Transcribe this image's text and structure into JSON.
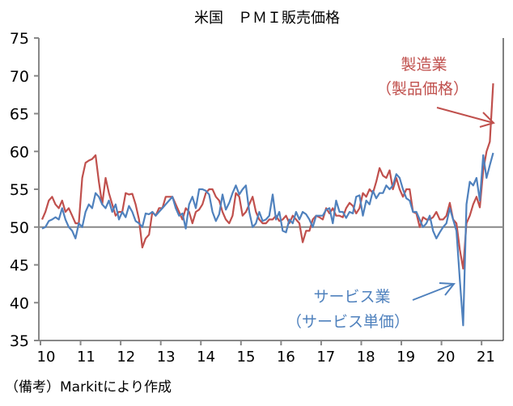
{
  "chart_data": {
    "type": "line",
    "title": "米国　ＰＭＩ販売価格",
    "xlabel": "",
    "ylabel": "",
    "ylim": [
      35,
      75
    ],
    "yticks": [
      "75",
      "70",
      "65",
      "60",
      "55",
      "50",
      "45",
      "40",
      "35"
    ],
    "xticks": [
      "10",
      "11",
      "12",
      "13",
      "14",
      "15",
      "16",
      "17",
      "18",
      "19",
      "20",
      "21"
    ],
    "x_start": "2010-01",
    "x_frequency": "monthly",
    "reference_line": 50,
    "grid": false,
    "series": [
      {
        "name": "製造業（製品価格）",
        "label_line1": "製造業",
        "label_line2": "（製品価格）",
        "color": "#C0504D",
        "values": [
          51,
          52,
          53.5,
          54,
          53,
          52.5,
          53.5,
          52,
          52.5,
          51.5,
          50.5,
          50.5,
          56.5,
          58.5,
          58.8,
          59,
          59.5,
          56,
          53,
          56.5,
          54.5,
          53,
          51.5,
          52,
          52,
          54.5,
          54.3,
          54.4,
          53,
          51,
          47.3,
          48.5,
          49,
          52,
          51.5,
          52.5,
          52.5,
          54,
          54,
          54,
          53,
          52,
          51,
          52.5,
          52,
          50.5,
          52,
          52.3,
          53,
          54.5,
          55,
          55,
          54,
          53.5,
          52,
          51,
          50.5,
          51.5,
          54.5,
          54,
          51.5,
          52,
          53,
          54,
          52,
          51,
          50.5,
          50.5,
          51,
          51,
          51.5,
          50.8,
          51,
          51.5,
          50.5,
          51.5,
          51,
          50.5,
          48,
          49.5,
          49.5,
          51,
          51.5,
          51.3,
          51,
          52.5,
          51.8,
          52.5,
          51.5,
          51.5,
          51.3,
          52.5,
          53.2,
          52.8,
          51.8,
          52.5,
          54.5,
          54,
          55,
          54.5,
          56,
          57.8,
          56.8,
          56.5,
          57.5,
          55,
          56.5,
          55,
          54,
          55,
          55,
          52,
          51.8,
          50,
          51.3,
          51,
          51,
          51.3,
          52,
          51,
          51,
          51.5,
          53.2,
          51,
          50.5,
          47,
          44.5,
          50.5,
          51.5,
          53,
          54,
          52.6,
          57.5,
          60,
          61.3,
          69
        ]
      },
      {
        "name": "サービス業（サービス単価）",
        "label_line1": "サービス業",
        "label_line2": "（サービス単価）",
        "color": "#4F81BD",
        "values": [
          49.8,
          50,
          50.8,
          51,
          51.3,
          51,
          52.5,
          51,
          50,
          49.5,
          48.5,
          50.5,
          50,
          52,
          53,
          52.5,
          54.5,
          54,
          53,
          52.5,
          53.5,
          52,
          53,
          51,
          52,
          51.3,
          52.8,
          52,
          50.8,
          50.5,
          50,
          51.8,
          51.7,
          52,
          51.5,
          52,
          52.5,
          53,
          53.5,
          54,
          52.5,
          51.5,
          51.8,
          49.8,
          53,
          54,
          52.5,
          55,
          55,
          54.8,
          54.3,
          52,
          50.8,
          51.7,
          54.3,
          52.3,
          53.2,
          54.5,
          55.5,
          54.3,
          55,
          55.5,
          52,
          50,
          50.5,
          52,
          50.8,
          51,
          51.5,
          54.3,
          51,
          52,
          49.5,
          49.3,
          51,
          50.5,
          52,
          51,
          52,
          51.7,
          51,
          50,
          51.5,
          51.5,
          51.5,
          52.3,
          52.5,
          50.5,
          53.5,
          52,
          52,
          51.2,
          52,
          51.8,
          54,
          54.2,
          51.5,
          53.5,
          53,
          54.8,
          53.8,
          54.5,
          54.5,
          55.5,
          55,
          55.5,
          57,
          56.5,
          55,
          53.8,
          53.5,
          52,
          52,
          51,
          50,
          50.5,
          51.5,
          49.5,
          48.5,
          49.3,
          50,
          50.5,
          52.5,
          51,
          49.5,
          43,
          37,
          53,
          56,
          55.5,
          56.5,
          53.5,
          59.5,
          56.5,
          58.2,
          59.8
        ]
      }
    ]
  },
  "footnote": "（備考）Markitにより作成"
}
